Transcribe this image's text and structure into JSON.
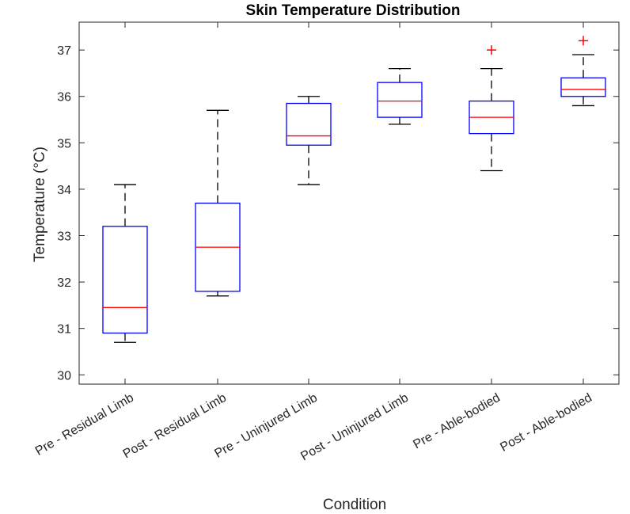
{
  "chart_data": {
    "type": "box",
    "title": "Skin Temperature Distribution",
    "xlabel": "Condition",
    "ylabel": "Temperature (°C)",
    "ylim": [
      29.8,
      37.6
    ],
    "yticks": [
      30,
      31,
      32,
      33,
      34,
      35,
      36,
      37
    ],
    "grid": false,
    "categories": [
      "Pre - Residual Limb",
      "Post - Residual Limb",
      "Pre - Uninjured Limb",
      "Post - Uninjured Limb",
      "Pre - Able-bodied",
      "Post - Able-bodied"
    ],
    "boxes": [
      {
        "whisker_low": 30.7,
        "q1": 30.9,
        "median": 31.45,
        "q3": 33.2,
        "whisker_high": 34.1,
        "outliers": []
      },
      {
        "whisker_low": 31.7,
        "q1": 31.8,
        "median": 32.75,
        "q3": 33.7,
        "whisker_high": 35.7,
        "outliers": []
      },
      {
        "whisker_low": 34.1,
        "q1": 34.95,
        "median": 35.15,
        "q3": 35.85,
        "whisker_high": 36.0,
        "outliers": []
      },
      {
        "whisker_low": 35.4,
        "q1": 35.55,
        "median": 35.9,
        "q3": 36.3,
        "whisker_high": 36.6,
        "outliers": []
      },
      {
        "whisker_low": 34.4,
        "q1": 35.2,
        "median": 35.55,
        "q3": 35.9,
        "whisker_high": 36.6,
        "outliers": [
          37.0
        ]
      },
      {
        "whisker_low": 35.8,
        "q1": 36.0,
        "median": 36.15,
        "q3": 36.4,
        "whisker_high": 36.9,
        "outliers": [
          37.2
        ]
      }
    ],
    "colors": {
      "box": "#0000ff",
      "median": "#ff0000",
      "whisker": "#000000",
      "outlier": "#ff0000",
      "axis": "#262626"
    }
  }
}
